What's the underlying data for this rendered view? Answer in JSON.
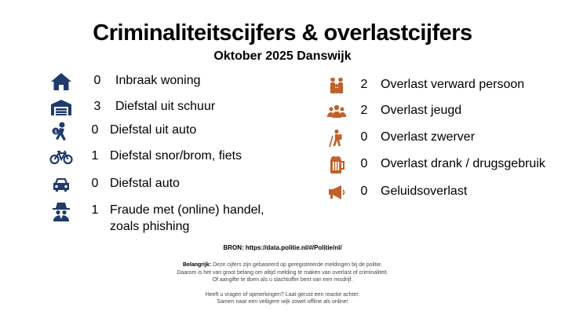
{
  "header": {
    "title": "Criminaliteitscijfers & overlastcijfers",
    "subtitle": "Oktober 2025 Danswijk"
  },
  "colors": {
    "crime_icon": "#1f3a6b",
    "nuisance_icon": "#c0602a"
  },
  "crime_items": [
    {
      "icon": "house-icon",
      "count": "0",
      "label": "Inbraak woning"
    },
    {
      "icon": "garage-icon",
      "count": "3",
      "label": "Diefstal uit schuur"
    },
    {
      "icon": "thief-icon",
      "count": "0",
      "label": "Diefstal uit auto"
    },
    {
      "icon": "bicycle-icon",
      "count": "1",
      "label": "Diefstal snor/brom, fiets"
    },
    {
      "icon": "car-icon",
      "count": "0",
      "label": "Diefstal auto"
    },
    {
      "icon": "spy-icon",
      "count": "1",
      "label": "Fraude met (online) handel,",
      "label2": "zoals phishing"
    }
  ],
  "nuisance_items": [
    {
      "icon": "family-icon",
      "count": "2",
      "label": "Overlast verward persoon"
    },
    {
      "icon": "group-icon",
      "count": "2",
      "label": "Overlast jeugd"
    },
    {
      "icon": "hiker-icon",
      "count": "0",
      "label": "Overlast zwerver"
    },
    {
      "icon": "drink-icon",
      "count": "0",
      "label": "Overlast drank / drugsgebruik"
    },
    {
      "icon": "megaphone-icon",
      "count": "0",
      "label": "Geluidsoverlast"
    }
  ],
  "footer": {
    "source": "BRON: https://data.politie.nl/#/Politie/nl/",
    "important_label": "Belangrijk:",
    "note_line1": "Deze cijfers zijn gebaseerd op geregistreerde meldingen bij de politie.",
    "note_line2": "Daarom is het van groot belang om altijd melding te maken van overlast of criminaliteit.",
    "note_line3": "Of aangifte te doen als u slachtoffer bent van een misdrijf.",
    "note_line4": "Heeft u vragen of opmerkingen? Laat gerust een reactie achter.",
    "note_line5": "Samen naar een veiligere wijk zowel offline als online!"
  }
}
